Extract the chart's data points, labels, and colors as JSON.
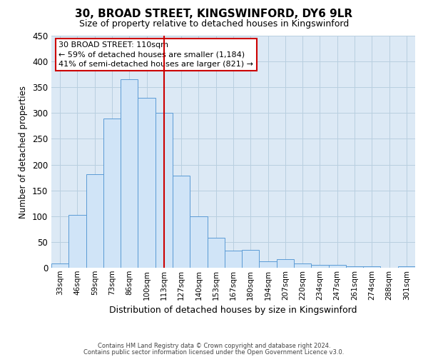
{
  "title": "30, BROAD STREET, KINGSWINFORD, DY6 9LR",
  "subtitle": "Size of property relative to detached houses in Kingswinford",
  "xlabel": "Distribution of detached houses by size in Kingswinford",
  "ylabel": "Number of detached properties",
  "categories": [
    "33sqm",
    "46sqm",
    "59sqm",
    "73sqm",
    "86sqm",
    "100sqm",
    "113sqm",
    "127sqm",
    "140sqm",
    "153sqm",
    "167sqm",
    "180sqm",
    "194sqm",
    "207sqm",
    "220sqm",
    "234sqm",
    "247sqm",
    "261sqm",
    "274sqm",
    "288sqm",
    "301sqm"
  ],
  "values": [
    8,
    103,
    182,
    290,
    365,
    330,
    300,
    178,
    100,
    58,
    33,
    35,
    12,
    17,
    8,
    5,
    5,
    3,
    3,
    0,
    3
  ],
  "bar_color": "#d0e4f7",
  "bar_edge_color": "#5b9bd5",
  "vline_x": 6,
  "vline_color": "#cc0000",
  "ylim": [
    0,
    450
  ],
  "yticks": [
    0,
    50,
    100,
    150,
    200,
    250,
    300,
    350,
    400,
    450
  ],
  "annotation_title": "30 BROAD STREET: 110sqm",
  "annotation_line1": "← 59% of detached houses are smaller (1,184)",
  "annotation_line2": "41% of semi-detached houses are larger (821) →",
  "footnote1": "Contains HM Land Registry data © Crown copyright and database right 2024.",
  "footnote2": "Contains public sector information licensed under the Open Government Licence v3.0.",
  "bg_color": "#ffffff",
  "axes_bg_color": "#dce9f5",
  "grid_color": "#b8cfe0"
}
